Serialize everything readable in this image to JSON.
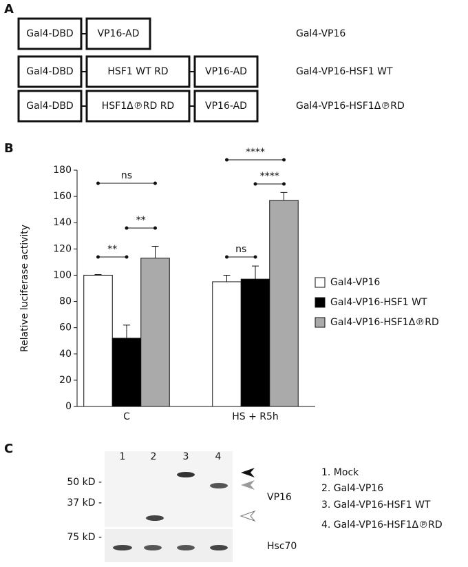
{
  "panel_a": {
    "label": "A",
    "constructs": [
      {
        "boxes": [
          "Gal4-DBD",
          "VP16-AD"
        ],
        "name": "Gal4-VP16"
      },
      {
        "boxes": [
          "Gal4-DBD",
          "HSF1 WT RD",
          "VP16-AD"
        ],
        "name": "Gal4-VP16-HSF1 WT"
      },
      {
        "boxes": [
          "Gal4-DBD",
          "HSF1Δ℗RD RD",
          "VP16-AD"
        ],
        "name": "Gal4-VP16-HSF1Δ℗RD"
      }
    ]
  },
  "panel_b": {
    "label": "B"
  },
  "chart_data": {
    "type": "bar",
    "ylabel": "Relative luciferase activity",
    "categories": [
      "C",
      "HS + R5h"
    ],
    "series": [
      {
        "name": "Gal4-VP16",
        "color": "#ffffff",
        "values": [
          100,
          95
        ],
        "errors": [
          0.5,
          5
        ]
      },
      {
        "name": "Gal4-VP16-HSF1 WT",
        "color": "#000000",
        "values": [
          52,
          97
        ],
        "errors": [
          10,
          10
        ]
      },
      {
        "name": "Gal4-VP16-HSF1Δ℗RD",
        "color": "#aaaaaa",
        "values": [
          113,
          157
        ],
        "errors": [
          9,
          6
        ]
      }
    ],
    "ylim": [
      0,
      180
    ],
    "yticks": [
      0,
      20,
      40,
      60,
      80,
      100,
      120,
      140,
      160,
      180
    ],
    "annotations": [
      "**",
      "**",
      "ns",
      "ns",
      "****",
      "****"
    ]
  },
  "panel_c": {
    "label": "C",
    "lanes": [
      "1",
      "2",
      "3",
      "4"
    ],
    "markers": [
      "50 kD -",
      "37 kD -",
      "75 kD -"
    ],
    "blots": [
      "VP16",
      "Hsc70"
    ],
    "legend": [
      "1. Mock",
      "2. Gal4-VP16",
      "3. Gal4-VP16-HSF1 WT",
      "4. Gal4-VP16-HSF1Δ℗RD"
    ]
  }
}
